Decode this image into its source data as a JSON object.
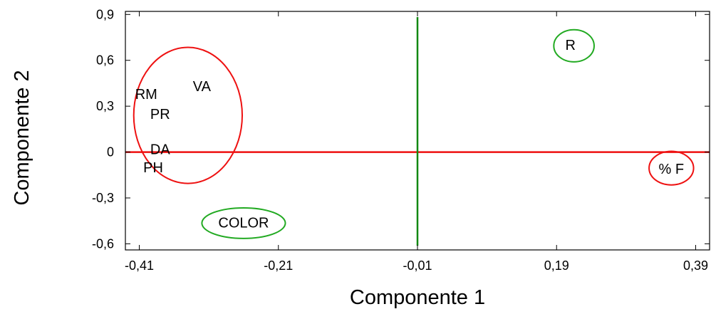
{
  "chart_data": {
    "type": "scatter",
    "title": "",
    "xlabel": "Componente 1",
    "ylabel": "Componente 2",
    "xlim": [
      -0.43,
      0.41
    ],
    "ylim": [
      -0.64,
      0.92
    ],
    "x_ticks": [
      {
        "value": -0.41,
        "label": "-0,41"
      },
      {
        "value": -0.21,
        "label": "-0,21"
      },
      {
        "value": -0.01,
        "label": "-0,01"
      },
      {
        "value": 0.19,
        "label": "0,19"
      },
      {
        "value": 0.39,
        "label": "0,39"
      }
    ],
    "y_ticks": [
      {
        "value": 0.9,
        "label": "0,9"
      },
      {
        "value": 0.6,
        "label": "0,6"
      },
      {
        "value": 0.3,
        "label": "0,3"
      },
      {
        "value": 0.0,
        "label": "0"
      },
      {
        "value": -0.3,
        "label": "-0,3"
      },
      {
        "value": -0.6,
        "label": "-0,6"
      }
    ],
    "grid": false,
    "points": [
      {
        "label": "RM",
        "x": -0.4,
        "y": 0.38
      },
      {
        "label": "VA",
        "x": -0.32,
        "y": 0.43
      },
      {
        "label": "PR",
        "x": -0.38,
        "y": 0.25
      },
      {
        "label": "DA",
        "x": -0.38,
        "y": 0.02
      },
      {
        "label": "PH",
        "x": -0.39,
        "y": -0.1
      },
      {
        "label": "COLOR",
        "x": -0.26,
        "y": -0.46
      },
      {
        "label": "R",
        "x": 0.21,
        "y": 0.7
      },
      {
        "label": "% F",
        "x": 0.355,
        "y": -0.11
      }
    ],
    "reference_lines": [
      {
        "orientation": "horizontal",
        "value": 0.0,
        "color": "#ee1111"
      },
      {
        "orientation": "vertical",
        "value": -0.01,
        "color": "#118811"
      }
    ],
    "ellipses": [
      {
        "cx": -0.34,
        "cy": 0.24,
        "rx": 0.078,
        "ry": 0.445,
        "color": "#ee1111"
      },
      {
        "cx": -0.26,
        "cy": -0.465,
        "rx": 0.06,
        "ry": 0.1,
        "color": "#22aa22"
      },
      {
        "cx": 0.215,
        "cy": 0.695,
        "rx": 0.029,
        "ry": 0.105,
        "color": "#22aa22"
      },
      {
        "cx": 0.355,
        "cy": -0.105,
        "rx": 0.032,
        "ry": 0.11,
        "color": "#ee1111"
      }
    ],
    "colors": {
      "frame": "#000000",
      "text": "#000000"
    }
  }
}
